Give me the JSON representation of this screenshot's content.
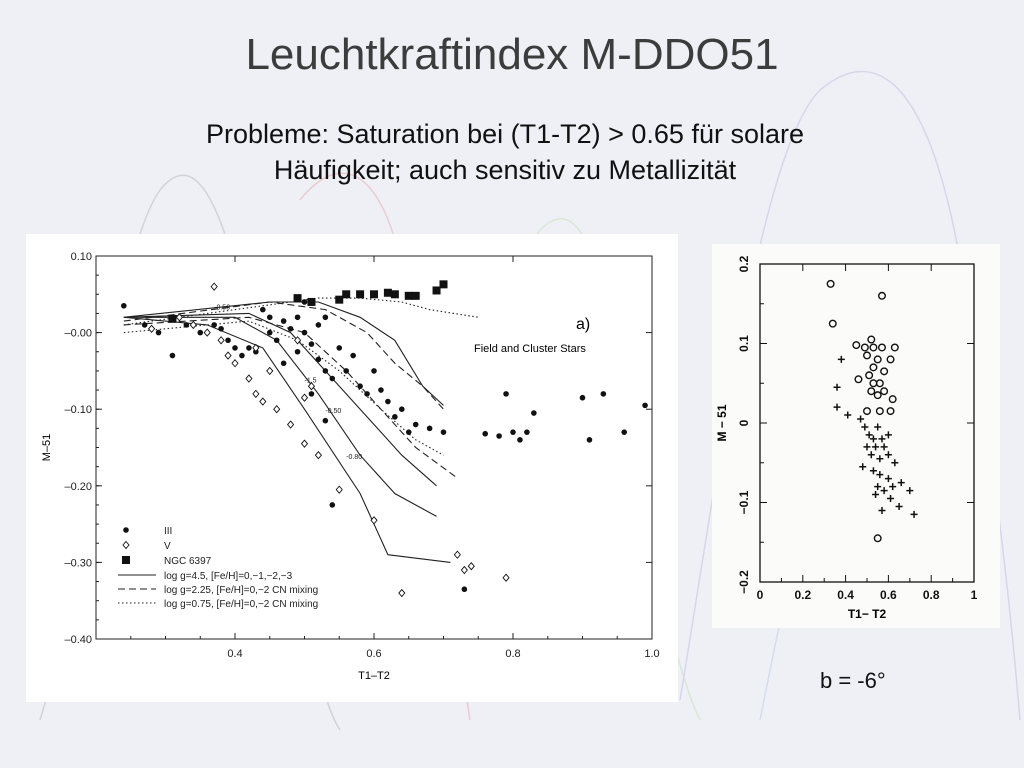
{
  "slide": {
    "title": "Leuchtkraftindex M-DDO51",
    "subtitle_line1": "Probleme: Saturation bei (T1-T2) > 0.65 für solare",
    "subtitle_line2": "Häufigkeit; auch sensitiv zu Metallizität",
    "caption": "b = -6°",
    "background_color": "#eef0f6"
  },
  "chart_data": [
    {
      "type": "scatter",
      "panel_label": "a)",
      "annotation": "Field and Cluster Stars",
      "xlabel": "T1–T2",
      "ylabel": "M–51",
      "xlim": [
        0.2,
        1.0
      ],
      "ylim": [
        -0.4,
        0.1
      ],
      "x_ticks": [
        "0.4",
        "0.6",
        "0.8",
        "1.0"
      ],
      "y_ticks": [
        "0.10",
        "–0.00",
        "–0.10",
        "–0.20",
        "–0.30",
        "–0.40"
      ],
      "legend": {
        "markers": [
          {
            "symbol": "dot",
            "label": "III"
          },
          {
            "symbol": "diamond",
            "label": "V"
          },
          {
            "symbol": "square",
            "label": "NGC 6397"
          }
        ],
        "lines": [
          {
            "style": "solid",
            "label": "log g=4.5,  [Fe/H]=0,−1,−2,−3"
          },
          {
            "style": "dashed",
            "label": "log g=2.25,  [Fe/H]=0,−2  CN mixing"
          },
          {
            "style": "dotted",
            "label": "log g=0.75,  [Fe/H]=0,−2  CN mixing"
          }
        ]
      },
      "curve_labels": [
        {
          "text": "-0.50",
          "x": 0.37,
          "y": 0.03
        },
        {
          "text": "-1.5",
          "x": 0.5,
          "y": -0.065
        },
        {
          "text": "-0.50",
          "x": 0.53,
          "y": -0.105
        },
        {
          "text": "-0.80",
          "x": 0.56,
          "y": -0.165
        }
      ],
      "series": [
        {
          "name": "III",
          "marker": "dot",
          "points": [
            [
              0.24,
              0.035
            ],
            [
              0.27,
              0.01
            ],
            [
              0.29,
              0.0
            ],
            [
              0.31,
              -0.03
            ],
            [
              0.33,
              0.01
            ],
            [
              0.35,
              0.0
            ],
            [
              0.37,
              0.01
            ],
            [
              0.38,
              0.005
            ],
            [
              0.39,
              -0.01
            ],
            [
              0.4,
              -0.02
            ],
            [
              0.41,
              -0.03
            ],
            [
              0.42,
              -0.02
            ],
            [
              0.43,
              -0.025
            ],
            [
              0.44,
              0.03
            ],
            [
              0.45,
              0.02
            ],
            [
              0.45,
              0.0
            ],
            [
              0.46,
              -0.01
            ],
            [
              0.47,
              0.015
            ],
            [
              0.47,
              -0.04
            ],
            [
              0.48,
              0.005
            ],
            [
              0.49,
              0.02
            ],
            [
              0.49,
              -0.025
            ],
            [
              0.5,
              0.04
            ],
            [
              0.5,
              0.0
            ],
            [
              0.51,
              -0.015
            ],
            [
              0.52,
              0.01
            ],
            [
              0.52,
              -0.035
            ],
            [
              0.53,
              -0.05
            ],
            [
              0.53,
              0.02
            ],
            [
              0.54,
              -0.06
            ],
            [
              0.55,
              -0.02
            ],
            [
              0.56,
              -0.05
            ],
            [
              0.57,
              -0.03
            ],
            [
              0.58,
              -0.07
            ],
            [
              0.59,
              -0.08
            ],
            [
              0.6,
              -0.05
            ],
            [
              0.61,
              -0.075
            ],
            [
              0.62,
              -0.09
            ],
            [
              0.63,
              -0.11
            ],
            [
              0.64,
              -0.1
            ],
            [
              0.65,
              -0.13
            ],
            [
              0.66,
              -0.12
            ],
            [
              0.68,
              -0.125
            ],
            [
              0.7,
              -0.13
            ],
            [
              0.53,
              -0.115
            ],
            [
              0.51,
              -0.08
            ],
            [
              0.54,
              -0.225
            ],
            [
              0.73,
              -0.335
            ],
            [
              0.76,
              -0.132
            ],
            [
              0.78,
              -0.135
            ],
            [
              0.79,
              -0.08
            ],
            [
              0.8,
              -0.13
            ],
            [
              0.81,
              -0.14
            ],
            [
              0.82,
              -0.13
            ],
            [
              0.83,
              -0.105
            ],
            [
              0.9,
              -0.085
            ],
            [
              0.91,
              -0.14
            ],
            [
              0.93,
              -0.08
            ],
            [
              0.96,
              -0.13
            ],
            [
              0.99,
              -0.095
            ]
          ]
        },
        {
          "name": "V",
          "marker": "diamond",
          "points": [
            [
              0.28,
              0.005
            ],
            [
              0.32,
              0.02
            ],
            [
              0.34,
              0.01
            ],
            [
              0.36,
              0.0
            ],
            [
              0.38,
              -0.01
            ],
            [
              0.39,
              -0.03
            ],
            [
              0.4,
              -0.04
            ],
            [
              0.42,
              -0.06
            ],
            [
              0.43,
              -0.08
            ],
            [
              0.44,
              -0.09
            ],
            [
              0.45,
              -0.05
            ],
            [
              0.46,
              -0.1
            ],
            [
              0.48,
              -0.12
            ],
            [
              0.5,
              -0.145
            ],
            [
              0.52,
              -0.16
            ],
            [
              0.55,
              -0.205
            ],
            [
              0.6,
              -0.245
            ],
            [
              0.64,
              -0.34
            ],
            [
              0.72,
              -0.29
            ],
            [
              0.73,
              -0.31
            ],
            [
              0.74,
              -0.305
            ],
            [
              0.79,
              -0.32
            ],
            [
              0.37,
              0.06
            ],
            [
              0.49,
              -0.01
            ],
            [
              0.5,
              -0.085
            ],
            [
              0.51,
              -0.07
            ],
            [
              0.43,
              -0.02
            ]
          ]
        },
        {
          "name": "NGC 6397",
          "marker": "square",
          "points": [
            [
              0.31,
              0.018
            ],
            [
              0.49,
              0.045
            ],
            [
              0.51,
              0.04
            ],
            [
              0.55,
              0.043
            ],
            [
              0.56,
              0.05
            ],
            [
              0.58,
              0.05
            ],
            [
              0.6,
              0.05
            ],
            [
              0.62,
              0.052
            ],
            [
              0.63,
              0.05
            ],
            [
              0.65,
              0.048
            ],
            [
              0.66,
              0.048
            ],
            [
              0.69,
              0.055
            ],
            [
              0.7,
              0.063
            ]
          ]
        }
      ],
      "curves": [
        {
          "style": "solid",
          "points": [
            [
              0.24,
              0.02
            ],
            [
              0.36,
              0.01
            ],
            [
              0.44,
              -0.02
            ],
            [
              0.5,
              -0.1
            ],
            [
              0.58,
              -0.21
            ],
            [
              0.62,
              -0.29
            ],
            [
              0.71,
              -0.3
            ]
          ]
        },
        {
          "style": "solid",
          "points": [
            [
              0.24,
              0.02
            ],
            [
              0.4,
              0.02
            ],
            [
              0.46,
              -0.01
            ],
            [
              0.52,
              -0.08
            ],
            [
              0.58,
              -0.16
            ],
            [
              0.63,
              -0.21
            ],
            [
              0.69,
              -0.24
            ]
          ]
        },
        {
          "style": "solid",
          "points": [
            [
              0.24,
              0.02
            ],
            [
              0.42,
              0.025
            ],
            [
              0.48,
              0.0
            ],
            [
              0.53,
              -0.05
            ],
            [
              0.6,
              -0.12
            ],
            [
              0.64,
              -0.16
            ],
            [
              0.69,
              -0.2
            ]
          ]
        },
        {
          "style": "solid",
          "points": [
            [
              0.24,
              0.02
            ],
            [
              0.45,
              0.04
            ],
            [
              0.52,
              0.04
            ],
            [
              0.58,
              0.02
            ],
            [
              0.63,
              -0.01
            ],
            [
              0.67,
              -0.07
            ],
            [
              0.7,
              -0.095
            ]
          ]
        },
        {
          "style": "dashed",
          "points": [
            [
              0.24,
              0.01
            ],
            [
              0.42,
              0.02
            ],
            [
              0.5,
              0.0
            ],
            [
              0.56,
              -0.05
            ],
            [
              0.62,
              -0.11
            ],
            [
              0.66,
              -0.15
            ],
            [
              0.72,
              -0.19
            ]
          ]
        },
        {
          "style": "dashed",
          "points": [
            [
              0.24,
              0.015
            ],
            [
              0.45,
              0.04
            ],
            [
              0.53,
              0.03
            ],
            [
              0.59,
              0.0
            ],
            [
              0.63,
              -0.04
            ],
            [
              0.67,
              -0.07
            ],
            [
              0.7,
              -0.1
            ]
          ]
        },
        {
          "style": "dotted",
          "points": [
            [
              0.24,
              0.0
            ],
            [
              0.42,
              0.015
            ],
            [
              0.49,
              -0.01
            ],
            [
              0.55,
              -0.05
            ],
            [
              0.61,
              -0.1
            ],
            [
              0.66,
              -0.14
            ],
            [
              0.7,
              -0.16
            ]
          ]
        },
        {
          "style": "dotted",
          "points": [
            [
              0.24,
              0.01
            ],
            [
              0.44,
              0.035
            ],
            [
              0.52,
              0.045
            ],
            [
              0.58,
              0.045
            ],
            [
              0.64,
              0.04
            ],
            [
              0.68,
              0.03
            ],
            [
              0.75,
              0.02
            ]
          ]
        }
      ]
    },
    {
      "type": "scatter",
      "xlabel": "T1− T2",
      "ylabel": "M − 51",
      "xlim": [
        0,
        1
      ],
      "ylim": [
        -0.2,
        0.2
      ],
      "x_ticks": [
        "0",
        "0.2",
        "0.4",
        "0.6",
        "0.8",
        "1"
      ],
      "y_ticks": [
        "0.2",
        "0.1",
        "0",
        "−0.1",
        "−0.2"
      ],
      "series": [
        {
          "name": "circles",
          "marker": "circle",
          "points": [
            [
              0.33,
              0.175
            ],
            [
              0.57,
              0.16
            ],
            [
              0.34,
              0.125
            ],
            [
              0.52,
              0.105
            ],
            [
              0.45,
              0.098
            ],
            [
              0.49,
              0.095
            ],
            [
              0.53,
              0.095
            ],
            [
              0.57,
              0.095
            ],
            [
              0.63,
              0.095
            ],
            [
              0.5,
              0.085
            ],
            [
              0.55,
              0.08
            ],
            [
              0.61,
              0.08
            ],
            [
              0.53,
              0.07
            ],
            [
              0.58,
              0.065
            ],
            [
              0.46,
              0.055
            ],
            [
              0.51,
              0.06
            ],
            [
              0.53,
              0.05
            ],
            [
              0.56,
              0.05
            ],
            [
              0.52,
              0.04
            ],
            [
              0.58,
              0.04
            ],
            [
              0.55,
              0.035
            ],
            [
              0.62,
              0.03
            ],
            [
              0.5,
              0.015
            ],
            [
              0.56,
              0.015
            ],
            [
              0.61,
              0.015
            ],
            [
              0.55,
              -0.145
            ]
          ]
        },
        {
          "name": "crosses",
          "marker": "plus",
          "points": [
            [
              0.38,
              0.08
            ],
            [
              0.36,
              0.045
            ],
            [
              0.36,
              0.02
            ],
            [
              0.41,
              0.01
            ],
            [
              0.47,
              0.005
            ],
            [
              0.49,
              -0.005
            ],
            [
              0.51,
              -0.015
            ],
            [
              0.53,
              -0.02
            ],
            [
              0.55,
              -0.005
            ],
            [
              0.57,
              -0.02
            ],
            [
              0.6,
              -0.015
            ],
            [
              0.5,
              -0.03
            ],
            [
              0.54,
              -0.03
            ],
            [
              0.58,
              -0.03
            ],
            [
              0.52,
              -0.04
            ],
            [
              0.56,
              -0.045
            ],
            [
              0.6,
              -0.04
            ],
            [
              0.48,
              -0.055
            ],
            [
              0.63,
              -0.05
            ],
            [
              0.53,
              -0.06
            ],
            [
              0.56,
              -0.065
            ],
            [
              0.6,
              -0.07
            ],
            [
              0.66,
              -0.075
            ],
            [
              0.55,
              -0.08
            ],
            [
              0.58,
              -0.085
            ],
            [
              0.62,
              -0.08
            ],
            [
              0.7,
              -0.085
            ],
            [
              0.54,
              -0.09
            ],
            [
              0.61,
              -0.095
            ],
            [
              0.57,
              -0.11
            ],
            [
              0.65,
              -0.105
            ],
            [
              0.72,
              -0.115
            ]
          ]
        }
      ]
    }
  ]
}
